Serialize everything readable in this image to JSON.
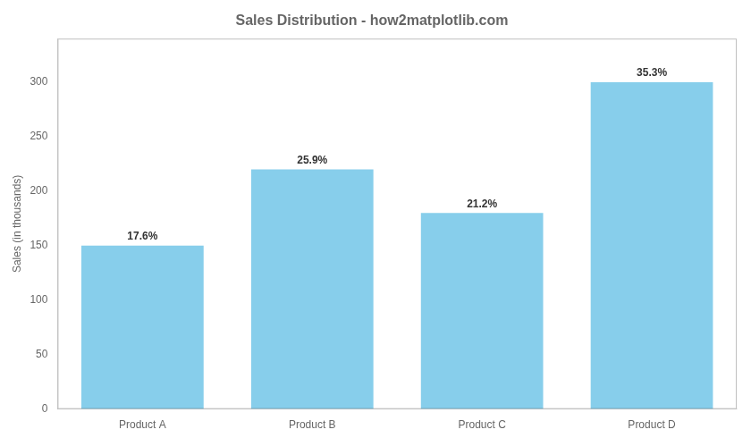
{
  "chart_data": {
    "type": "bar",
    "title": "Sales Distribution - how2matplotlib.com",
    "categories": [
      "Product A",
      "Product B",
      "Product C",
      "Product D"
    ],
    "values": [
      150,
      220,
      180,
      300
    ],
    "annotations": [
      "17.6%",
      "25.9%",
      "21.2%",
      "35.3%"
    ],
    "color": "#87ceeb",
    "ylabel": "Sales (in thousands)",
    "ylim": [
      0,
      340
    ],
    "yticks": [
      0,
      50,
      100,
      150,
      200,
      250,
      300
    ],
    "grid": false
  }
}
